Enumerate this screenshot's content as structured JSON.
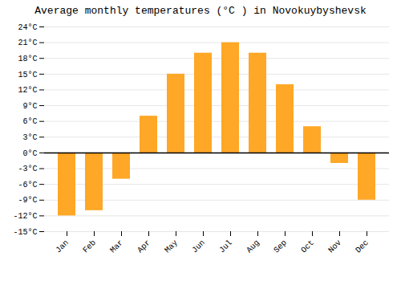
{
  "chart_data": {
    "type": "bar",
    "title": "Average monthly temperatures (°C ) in Novokuybyshevsk",
    "categories": [
      "Jan",
      "Feb",
      "Mar",
      "Apr",
      "May",
      "Jun",
      "Jul",
      "Aug",
      "Sep",
      "Oct",
      "Nov",
      "Dec"
    ],
    "values": [
      -12,
      -11,
      -5,
      7,
      15,
      19,
      21,
      19,
      13,
      5,
      -2,
      -9
    ],
    "color": "#FFA726",
    "ylim": [
      -15,
      24
    ],
    "yticks": [
      {
        "value": -15,
        "label": "-15°C"
      },
      {
        "value": -12,
        "label": "-12°C"
      },
      {
        "value": -9,
        "label": "-9°C"
      },
      {
        "value": -6,
        "label": "-6°C"
      },
      {
        "value": -3,
        "label": "-3°C"
      },
      {
        "value": 0,
        "label": "0°C"
      },
      {
        "value": 3,
        "label": "3°C"
      },
      {
        "value": 6,
        "label": "6°C"
      },
      {
        "value": 9,
        "label": "9°C"
      },
      {
        "value": 12,
        "label": "12°C"
      },
      {
        "value": 15,
        "label": "15°C"
      },
      {
        "value": 18,
        "label": "18°C"
      },
      {
        "value": 21,
        "label": "21°C"
      },
      {
        "value": 24,
        "label": "24°C"
      }
    ],
    "grid": true
  }
}
